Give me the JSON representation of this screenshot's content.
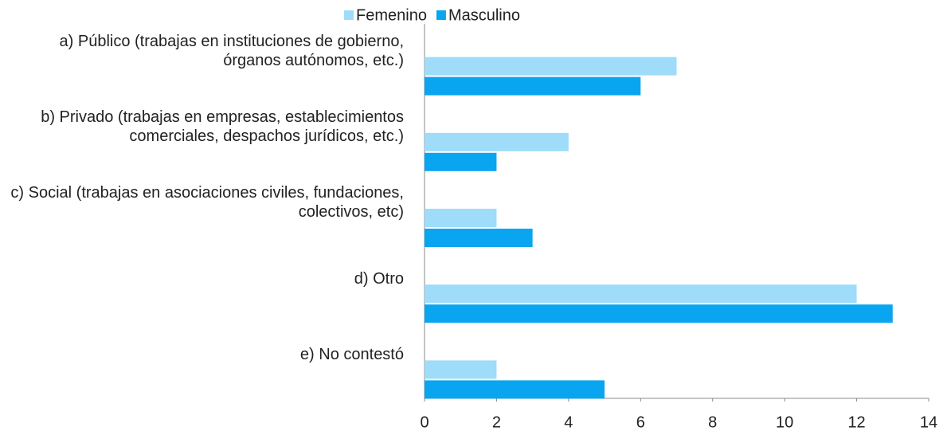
{
  "chart_data": {
    "type": "hbar",
    "categories": [
      "a) Público (trabajas en instituciones de gobierno, órganos autónomos, etc.)",
      "b) Privado (trabajas en empresas, establecimientos comerciales, despachos jurídicos, etc.)",
      "c) Social (trabajas en asociaciones civiles, fundaciones, colectivos, etc)",
      "d) Otro",
      "e) No contestó"
    ],
    "series": [
      {
        "name": "Femenino",
        "color": "#9edcfa",
        "values": [
          7,
          4,
          2,
          12,
          2
        ]
      },
      {
        "name": "Masculino",
        "color": "#0aa5f0",
        "values": [
          6,
          2,
          3,
          13,
          5
        ]
      }
    ],
    "xlim": [
      0,
      14
    ],
    "xticks": [
      0,
      2,
      4,
      6,
      8,
      10,
      12,
      14
    ],
    "legend": "top"
  }
}
